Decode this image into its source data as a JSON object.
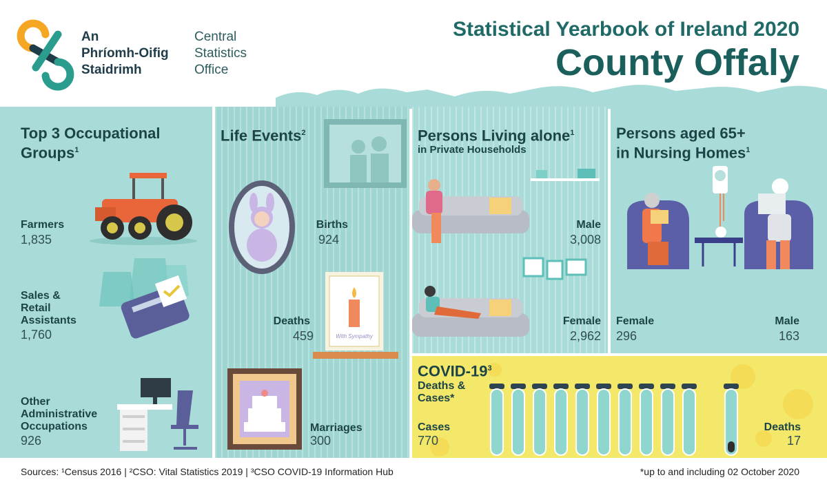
{
  "brand": {
    "irish_line1": "An",
    "irish_line2": "Phríomh-Oifig",
    "irish_line3": "Staidrimh",
    "english_line1": "Central",
    "english_line2": "Statistics",
    "english_line3": "Office"
  },
  "title": {
    "line1": "Statistical Yearbook of Ireland 2020",
    "line2": "County Offaly"
  },
  "occupations": {
    "heading_line1": "Top 3 Occupational",
    "heading_line2": "Groups",
    "heading_sup": "1",
    "items": [
      {
        "label_lines": [
          "Farmers"
        ],
        "value": "1,835",
        "icon": "tractor-icon"
      },
      {
        "label_lines": [
          "Sales &",
          "Retail",
          "Assistants"
        ],
        "value": "1,760",
        "icon": "card-terminal-icon"
      },
      {
        "label_lines": [
          "Other",
          "Administrative",
          "Occupations"
        ],
        "value": "926",
        "icon": "office-desk-icon"
      }
    ]
  },
  "life_events": {
    "heading": "Life Events",
    "heading_sup": "2",
    "births_label": "Births",
    "births_value": "924",
    "deaths_label": "Deaths",
    "deaths_value": "459",
    "marriages_label": "Marriages",
    "marriages_value": "300",
    "card_text": "With Sympathy"
  },
  "living_alone": {
    "heading": "Persons Living alone",
    "heading_sup": "1",
    "subheading": "in Private Households",
    "male_label": "Male",
    "male_value": "3,008",
    "female_label": "Female",
    "female_value": "2,962"
  },
  "nursing": {
    "heading_line1": "Persons aged 65+",
    "heading_line2": "in Nursing Homes",
    "heading_sup": "1",
    "female_label": "Female",
    "female_value": "296",
    "male_label": "Male",
    "male_value": "163"
  },
  "covid": {
    "heading": "COVID-19",
    "heading_sup": "3",
    "sub_line1": "Deaths &",
    "sub_line2": "Cases*",
    "cases_label": "Cases",
    "cases_value": "770",
    "deaths_label": "Deaths",
    "deaths_value": "17",
    "tube_count": 10
  },
  "footer": {
    "sources": "Sources: ¹Census 2016 | ²CSO: Vital Statistics 2019 | ³CSO COVID-19 Information Hub",
    "note": "*up to and including 02 October 2020"
  },
  "colors": {
    "panel_teal": "#a9dcd8",
    "title_teal": "#1a5f5b",
    "covid_yellow": "#f3e86a",
    "tractor_orange": "#e8663a"
  }
}
